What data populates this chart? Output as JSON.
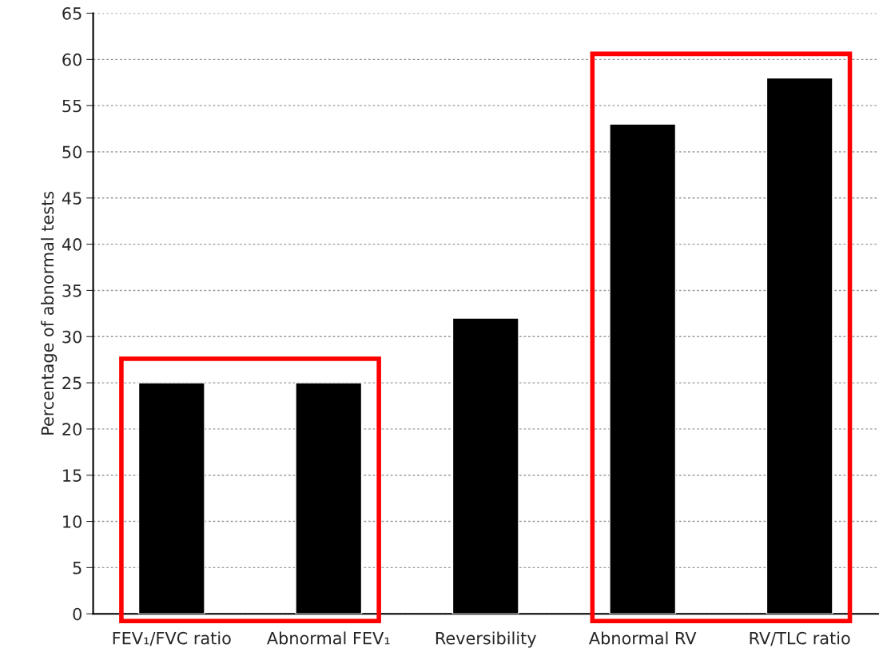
{
  "chart_data": {
    "type": "bar",
    "ylabel": "Percentage of abnormal tests",
    "categories": [
      "FEV₁/FVC ratio",
      "Abnormal FEV₁",
      "Reversibility",
      "Abnormal RV",
      "RV/TLC ratio"
    ],
    "values": [
      25,
      25,
      32,
      53,
      58
    ],
    "color": "#000000",
    "ylim": [
      0,
      65
    ],
    "yticks": [
      0,
      5,
      10,
      15,
      20,
      25,
      30,
      35,
      40,
      45,
      50,
      55,
      60,
      65
    ],
    "grid": "y"
  }
}
